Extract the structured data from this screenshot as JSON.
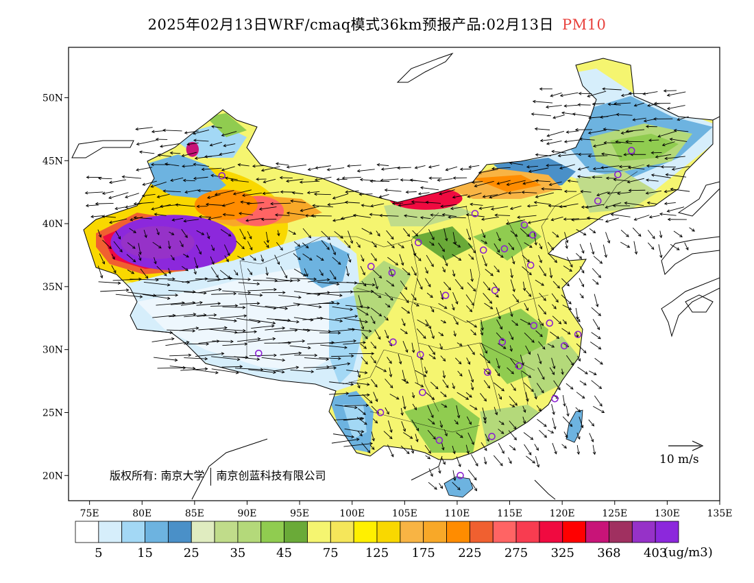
{
  "title": {
    "main": "2025年02月13日WRF/cmaq模式36km预报产品:02月13日",
    "species": "PM10",
    "species_color": "#e8413c"
  },
  "map": {
    "lon_range": [
      73,
      135
    ],
    "lat_range": [
      18,
      54
    ],
    "lat_labels": [
      "20N",
      "25N",
      "30N",
      "35N",
      "40N",
      "45N",
      "50N"
    ],
    "lon_labels": [
      "75E",
      "80E",
      "85E",
      "90E",
      "95E",
      "100E",
      "105E",
      "110E",
      "115E",
      "120E",
      "125E",
      "130E",
      "135E"
    ],
    "copyright": {
      "prefix": "版权所有:",
      "org1": "南京大学",
      "org2": "南京创蓝科技有限公司"
    },
    "wind_reference": {
      "label": "10 m/s",
      "icon": "arrow-right-icon"
    },
    "stations": [
      [
        87.6,
        43.8
      ],
      [
        91.1,
        29.7
      ],
      [
        101.8,
        36.6
      ],
      [
        103.8,
        36.1
      ],
      [
        106.3,
        38.5
      ],
      [
        103.9,
        30.6
      ],
      [
        106.5,
        29.6
      ],
      [
        106.7,
        26.6
      ],
      [
        102.7,
        25.0
      ],
      [
        108.3,
        22.8
      ],
      [
        110.3,
        20.0
      ],
      [
        113.3,
        23.1
      ],
      [
        112.9,
        28.2
      ],
      [
        115.9,
        28.7
      ],
      [
        114.3,
        30.6
      ],
      [
        117.3,
        31.9
      ],
      [
        118.8,
        32.1
      ],
      [
        120.2,
        30.3
      ],
      [
        121.5,
        31.2
      ],
      [
        119.3,
        26.1
      ],
      [
        113.6,
        34.7
      ],
      [
        114.5,
        38.0
      ],
      [
        112.5,
        37.9
      ],
      [
        108.9,
        34.3
      ],
      [
        117.0,
        36.7
      ],
      [
        117.2,
        39.1
      ],
      [
        116.4,
        39.9
      ],
      [
        111.7,
        40.8
      ],
      [
        123.4,
        41.8
      ],
      [
        125.3,
        43.9
      ],
      [
        126.6,
        45.8
      ]
    ]
  },
  "colorbar": {
    "labels": [
      "5",
      "15",
      "25",
      "35",
      "45",
      "75",
      "125",
      "175",
      "225",
      "275",
      "325",
      "368",
      "403"
    ],
    "colors": [
      "#ffffff",
      "#d6eefb",
      "#a3d8f5",
      "#6db3e0",
      "#4a90c8",
      "#e0ecc0",
      "#c0dc8a",
      "#b4d97a",
      "#90cc50",
      "#6aaa38",
      "#f5f570",
      "#f5e65a",
      "#fff000",
      "#f9d800",
      "#f8b444",
      "#f8a828",
      "#ff8c00",
      "#f06030",
      "#ff6464",
      "#f83c50",
      "#f00a40",
      "#ff0000",
      "#c81478",
      "#a03060",
      "#9632c8",
      "#8c28dc"
    ],
    "units": "(ug/m3)"
  },
  "pollution_zones": [
    {
      "lon": 83.0,
      "lat": 38.5,
      "rx": 6.0,
      "ry": 2.2,
      "level": 25
    },
    {
      "lon": 81.5,
      "lat": 38.5,
      "rx": 3.5,
      "ry": 1.3,
      "level": 24
    },
    {
      "lon": 91.0,
      "lat": 41.0,
      "rx": 2.5,
      "ry": 1.2,
      "level": 18
    },
    {
      "lon": 88.0,
      "lat": 41.5,
      "rx": 3.0,
      "ry": 1.2,
      "level": 16
    },
    {
      "lon": 107.0,
      "lat": 42.0,
      "rx": 3.5,
      "ry": 0.9,
      "level": 20
    },
    {
      "lon": 84.8,
      "lat": 45.9,
      "rx": 0.6,
      "ry": 0.6,
      "level": 22
    }
  ]
}
